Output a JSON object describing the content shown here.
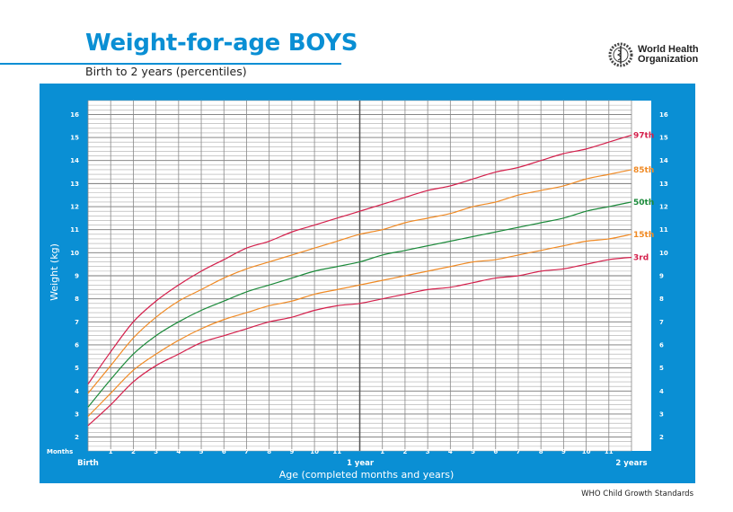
{
  "header": {
    "title": "Weight-for-age BOYS",
    "subtitle": "Birth to 2 years (percentiles)",
    "logo_text_line1": "World Health",
    "logo_text_line2": "Organization"
  },
  "footer": "WHO Child Growth Standards",
  "colors": {
    "panel": "#0a8fd4",
    "p97": "#d41f4b",
    "p85": "#f08a24",
    "p50": "#1b8a3a",
    "p15": "#f08a24",
    "p3": "#d41f4b"
  },
  "chart_data": {
    "type": "line",
    "title": "Weight-for-age BOYS",
    "subtitle": "Birth to 2 years (percentiles)",
    "xlabel": "Age (completed months and years)",
    "ylabel": "Weight (kg)",
    "x_unit_label": "Months",
    "x_major_labels": {
      "birth": "Birth",
      "year1": "1 year",
      "year2": "2 years"
    },
    "x_tick_labels": [
      "1",
      "2",
      "3",
      "4",
      "5",
      "6",
      "7",
      "8",
      "9",
      "10",
      "11",
      "",
      "1",
      "2",
      "3",
      "4",
      "5",
      "6",
      "7",
      "8",
      "9",
      "10",
      "11"
    ],
    "y_tick_labels": [
      "2",
      "3",
      "4",
      "5",
      "6",
      "7",
      "8",
      "9",
      "10",
      "11",
      "12",
      "13",
      "14",
      "15",
      "16"
    ],
    "xlim": [
      0,
      24
    ],
    "ylim": [
      1.4,
      16.6
    ],
    "grid": true,
    "x": [
      0,
      1,
      2,
      3,
      4,
      5,
      6,
      7,
      8,
      9,
      10,
      11,
      12,
      13,
      14,
      15,
      16,
      17,
      18,
      19,
      20,
      21,
      22,
      23,
      24
    ],
    "series": [
      {
        "name": "97th",
        "color": "#d41f4b",
        "values": [
          4.3,
          5.7,
          7.0,
          7.9,
          8.6,
          9.2,
          9.7,
          10.2,
          10.5,
          10.9,
          11.2,
          11.5,
          11.8,
          12.1,
          12.4,
          12.7,
          12.9,
          13.2,
          13.5,
          13.7,
          14.0,
          14.3,
          14.5,
          14.8,
          15.1
        ]
      },
      {
        "name": "85th",
        "color": "#f08a24",
        "values": [
          3.9,
          5.1,
          6.3,
          7.2,
          7.9,
          8.4,
          8.9,
          9.3,
          9.6,
          9.9,
          10.2,
          10.5,
          10.8,
          11.0,
          11.3,
          11.5,
          11.7,
          12.0,
          12.2,
          12.5,
          12.7,
          12.9,
          13.2,
          13.4,
          13.6
        ]
      },
      {
        "name": "50th",
        "color": "#1b8a3a",
        "values": [
          3.3,
          4.5,
          5.6,
          6.4,
          7.0,
          7.5,
          7.9,
          8.3,
          8.6,
          8.9,
          9.2,
          9.4,
          9.6,
          9.9,
          10.1,
          10.3,
          10.5,
          10.7,
          10.9,
          11.1,
          11.3,
          11.5,
          11.8,
          12.0,
          12.2
        ]
      },
      {
        "name": "15th",
        "color": "#f08a24",
        "values": [
          2.9,
          3.9,
          4.9,
          5.6,
          6.2,
          6.7,
          7.1,
          7.4,
          7.7,
          7.9,
          8.2,
          8.4,
          8.6,
          8.8,
          9.0,
          9.2,
          9.4,
          9.6,
          9.7,
          9.9,
          10.1,
          10.3,
          10.5,
          10.6,
          10.8
        ]
      },
      {
        "name": "3rd",
        "color": "#d41f4b",
        "values": [
          2.5,
          3.4,
          4.4,
          5.1,
          5.6,
          6.1,
          6.4,
          6.7,
          7.0,
          7.2,
          7.5,
          7.7,
          7.8,
          8.0,
          8.2,
          8.4,
          8.5,
          8.7,
          8.9,
          9.0,
          9.2,
          9.3,
          9.5,
          9.7,
          9.8
        ]
      }
    ]
  }
}
